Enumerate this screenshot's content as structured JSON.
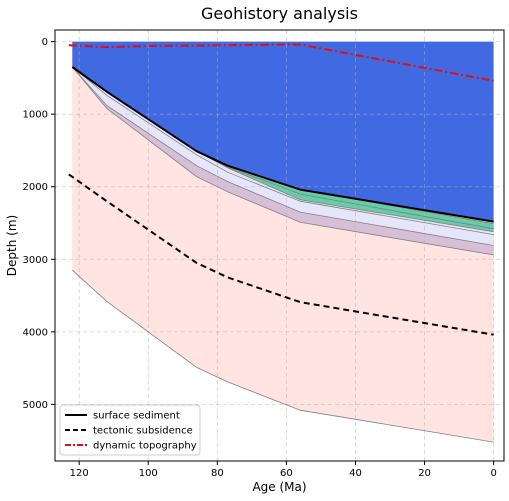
{
  "chart_data": {
    "type": "area",
    "title": "Geohistory analysis",
    "xlabel": "Age (Ma)",
    "ylabel": "Depth (m)",
    "xlim": [
      127,
      -3
    ],
    "ylim": [
      5780,
      -160
    ],
    "x_ticks": [
      120,
      100,
      80,
      60,
      40,
      20,
      0
    ],
    "y_ticks": [
      0,
      1000,
      2000,
      3000,
      4000,
      5000
    ],
    "grid": true,
    "legend_position": "lower-left",
    "colors": {
      "water": "#4169e1",
      "layer_tan": "#f5deb3",
      "layer_green": "#66cdaa",
      "layer_lavender": "#e6e6fa",
      "layer_thistle": "#d8bfd8",
      "layer_pink": "#ffe4e1",
      "surface": "#000000",
      "tectonic": "#000000",
      "dynamic": "#dd1111",
      "horizon": "#808080"
    },
    "ages": [
      122,
      112,
      86,
      77,
      56,
      0
    ],
    "surface_depth": [
      350,
      690,
      1510,
      1710,
      2040,
      2480
    ],
    "horizons": [
      [
        350,
        690,
        1510,
        1710,
        2040,
        2480
      ],
      [
        350,
        690,
        1510,
        1710,
        2040,
        2510
      ],
      [
        350,
        690,
        1510,
        1730,
        2100,
        2580
      ],
      [
        350,
        690,
        1510,
        1740,
        2180,
        2620
      ],
      [
        350,
        740,
        1560,
        1800,
        2200,
        2660
      ],
      [
        350,
        880,
        1710,
        1930,
        2350,
        2810
      ],
      [
        350,
        920,
        1860,
        2070,
        2490,
        2940
      ],
      [
        3150,
        3580,
        4490,
        4690,
        5080,
        5520
      ]
    ],
    "layer_colors": [
      "layer_tan",
      "layer_green",
      "layer_green",
      "layer_lavender",
      "layer_lavender",
      "layer_thistle",
      "layer_pink"
    ],
    "water_top": 0,
    "water_x": [
      122,
      0
    ],
    "series": [
      {
        "name": "surface sediment",
        "style": "solid",
        "x": [
          122,
          112,
          86,
          77,
          56,
          0
        ],
        "y": [
          350,
          690,
          1510,
          1710,
          2040,
          2480
        ]
      },
      {
        "name": "tectonic subsidence",
        "style": "dashed",
        "x": [
          123,
          112,
          86,
          77,
          56,
          0
        ],
        "y": [
          1830,
          2200,
          3050,
          3250,
          3590,
          4040
        ]
      },
      {
        "name": "dynamic topography",
        "style": "dashdot",
        "x": [
          123,
          112,
          100,
          86,
          60,
          56,
          0
        ],
        "y": [
          50,
          75,
          60,
          55,
          40,
          40,
          540
        ]
      }
    ]
  }
}
